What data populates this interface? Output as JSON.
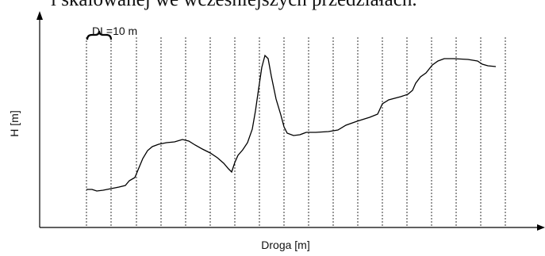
{
  "header": {
    "text": "i skalowanej we wcześniejszych przedziałach."
  },
  "diagram": {
    "segment_label": "DL=10 m",
    "y_axis_label": "H [m]",
    "x_axis_label": "Droga [m]",
    "interval_count": 18,
    "profile_color": "#000000",
    "gridline_color": "#000000"
  }
}
